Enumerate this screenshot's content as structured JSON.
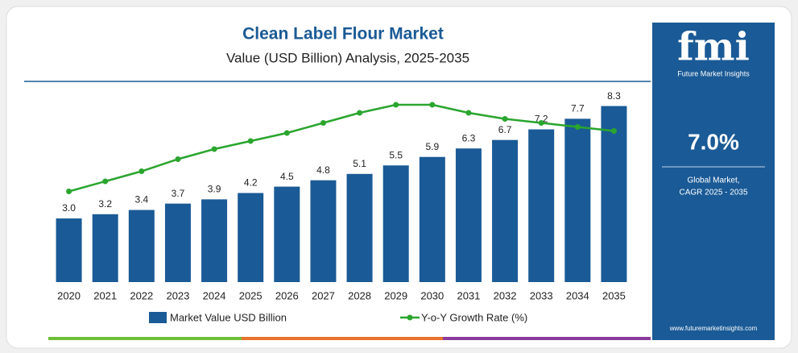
{
  "chart_data": {
    "type": "bar",
    "title": "Clean Label Flour Market",
    "subtitle": "Value (USD Billion) Analysis, 2025-2035",
    "categories": [
      "2020",
      "2021",
      "2022",
      "2023",
      "2024",
      "2025",
      "2026",
      "2027",
      "2028",
      "2029",
      "2030",
      "2031",
      "2032",
      "2033",
      "2034",
      "2035"
    ],
    "ylim": [
      0,
      9.5
    ],
    "y2lim": [
      0,
      10
    ],
    "series": [
      {
        "name": "Market Value USD Billion",
        "type": "bar",
        "color": "#1a5a96",
        "values": [
          3.0,
          3.2,
          3.4,
          3.7,
          3.9,
          4.2,
          4.5,
          4.8,
          5.1,
          5.5,
          5.9,
          6.3,
          6.7,
          7.2,
          7.7,
          8.3
        ],
        "value_labels": [
          "3.0",
          "3.2",
          "3.4",
          "3.7",
          "3.9",
          "4.2",
          "4.5",
          "4.8",
          "5.1",
          "5.5",
          "5.9",
          "6.3",
          "6.7",
          "7.2",
          "7.7",
          "8.3"
        ]
      },
      {
        "name": "Y-o-Y Growth Rate (%)",
        "type": "line",
        "axis": "y2",
        "color": "#2aa52e",
        "values": [
          4.5,
          5.0,
          5.5,
          6.1,
          6.6,
          7.0,
          7.4,
          7.9,
          8.4,
          8.8,
          8.8,
          8.4,
          8.1,
          7.9,
          7.7,
          7.5
        ]
      }
    ]
  },
  "sidebar": {
    "logo": "fmi",
    "logo_caption": "Future Market Insights",
    "cagr": "7.0%",
    "cagr_label_1": "Global Market,",
    "cagr_label_2": "CAGR 2025 - 2035",
    "website": "www.futuremarketinsights.com"
  }
}
